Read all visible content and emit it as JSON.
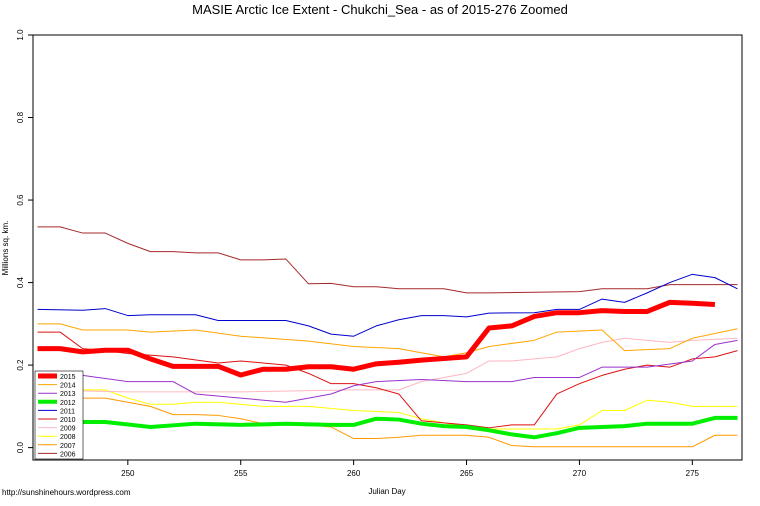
{
  "chart_data": {
    "type": "line",
    "title": "MASIE Arctic Ice Extent - Chukchi_Sea - as of 2015-276 Zoomed",
    "x_label": "Julian Day",
    "y_label": "Millions sq. km.",
    "footer": "http://sunshinehours.wordpress.com",
    "xlim": [
      245.8,
      277.2
    ],
    "ylim": [
      -0.03,
      1.0
    ],
    "xticks": [
      250,
      255,
      260,
      265,
      270,
      275
    ],
    "yticks": [
      {
        "value": 0,
        "label": "0.0"
      },
      0.2,
      0.4,
      0.6,
      0.8,
      {
        "value": 1,
        "label": "1.0"
      }
    ],
    "legend": "bottom-left",
    "series": [
      {
        "name": "2015",
        "color": "#ff0000",
        "lw": 5,
        "x": [
          246,
          247,
          248,
          249,
          250,
          251,
          252,
          253,
          254,
          255,
          256,
          257,
          258,
          259,
          260,
          261,
          262,
          263,
          264,
          265,
          266,
          267,
          268,
          269,
          270,
          271,
          272,
          273,
          274,
          275,
          276
        ],
        "values": [
          0.24,
          0.24,
          0.232,
          0.236,
          0.236,
          0.215,
          0.197,
          0.197,
          0.197,
          0.176,
          0.19,
          0.19,
          0.196,
          0.196,
          0.19,
          0.203,
          0.207,
          0.212,
          0.216,
          0.22,
          0.29,
          0.295,
          0.318,
          0.327,
          0.327,
          0.332,
          0.33,
          0.33,
          0.352,
          0.35,
          0.347
        ]
      },
      {
        "name": "2014",
        "color": "#ffa500",
        "lw": 1,
        "x": [
          246,
          247,
          248,
          250,
          251,
          253,
          255,
          258,
          260,
          262,
          264,
          265,
          266,
          268,
          269,
          271,
          272,
          274,
          275,
          277
        ],
        "values": [
          0.3,
          0.3,
          0.285,
          0.285,
          0.28,
          0.285,
          0.27,
          0.258,
          0.245,
          0.24,
          0.22,
          0.23,
          0.245,
          0.26,
          0.28,
          0.285,
          0.235,
          0.24,
          0.265,
          0.288
        ]
      },
      {
        "name": "2013",
        "color": "#9932cc",
        "lw": 1,
        "x": [
          246,
          248,
          250,
          252,
          253,
          255,
          257,
          258,
          259,
          260,
          261,
          263,
          265,
          267,
          268,
          270,
          271,
          273,
          275,
          276,
          277
        ],
        "values": [
          0.18,
          0.175,
          0.16,
          0.16,
          0.13,
          0.12,
          0.11,
          0.12,
          0.13,
          0.15,
          0.16,
          0.165,
          0.16,
          0.16,
          0.17,
          0.17,
          0.195,
          0.195,
          0.21,
          0.25,
          0.26
        ]
      },
      {
        "name": "2012",
        "color": "#00ee00",
        "lw": 4,
        "x": [
          246,
          247,
          249,
          251,
          253,
          255,
          257,
          259,
          260,
          261,
          262,
          263,
          264,
          265,
          266,
          267,
          268,
          269,
          270,
          272,
          273,
          275,
          276,
          277
        ],
        "values": [
          0.07,
          0.062,
          0.062,
          0.05,
          0.058,
          0.055,
          0.058,
          0.055,
          0.055,
          0.07,
          0.068,
          0.058,
          0.052,
          0.05,
          0.042,
          0.032,
          0.025,
          0.035,
          0.048,
          0.052,
          0.058,
          0.058,
          0.072,
          0.072
        ]
      },
      {
        "name": "2011",
        "color": "#0000cc",
        "lw": 1,
        "x": [
          246,
          248,
          249,
          250,
          251,
          253,
          254,
          257,
          258,
          259,
          260,
          261,
          262,
          263,
          264,
          265,
          266,
          268,
          269,
          270,
          271,
          272,
          273,
          274,
          275,
          276,
          277
        ],
        "values": [
          0.335,
          0.333,
          0.337,
          0.32,
          0.322,
          0.322,
          0.308,
          0.308,
          0.295,
          0.275,
          0.27,
          0.295,
          0.31,
          0.32,
          0.32,
          0.317,
          0.326,
          0.327,
          0.335,
          0.335,
          0.36,
          0.352,
          0.375,
          0.4,
          0.42,
          0.412,
          0.385
        ]
      },
      {
        "name": "2010",
        "color": "#dd1111",
        "lw": 1,
        "x": [
          246,
          247,
          248,
          249,
          250,
          252,
          254,
          255,
          257,
          258,
          259,
          260,
          261,
          262,
          263,
          264,
          265,
          266,
          267,
          268,
          269,
          270,
          271,
          272,
          273,
          274,
          275,
          276,
          277
        ],
        "values": [
          0.28,
          0.28,
          0.24,
          0.235,
          0.228,
          0.22,
          0.205,
          0.21,
          0.2,
          0.18,
          0.155,
          0.155,
          0.145,
          0.13,
          0.065,
          0.06,
          0.055,
          0.048,
          0.055,
          0.055,
          0.13,
          0.155,
          0.175,
          0.19,
          0.2,
          0.195,
          0.215,
          0.22,
          0.235
        ]
      },
      {
        "name": "2009",
        "color": "#ffb6c1",
        "lw": 1,
        "x": [
          246,
          250,
          255,
          260,
          262,
          263,
          265,
          266,
          267,
          268,
          269,
          270,
          271,
          272,
          273,
          274,
          275,
          277
        ],
        "values": [
          0.14,
          0.135,
          0.135,
          0.14,
          0.14,
          0.16,
          0.18,
          0.21,
          0.21,
          0.215,
          0.22,
          0.24,
          0.255,
          0.265,
          0.26,
          0.255,
          0.26,
          0.265
        ]
      },
      {
        "name": "2008",
        "color": "#ffff00",
        "lw": 1,
        "x": [
          246,
          248,
          249,
          250,
          251,
          252,
          253,
          254,
          256,
          258,
          260,
          262,
          263,
          265,
          266,
          268,
          269,
          270,
          271,
          272,
          273,
          274,
          275,
          277
        ],
        "values": [
          0.15,
          0.14,
          0.14,
          0.12,
          0.105,
          0.105,
          0.11,
          0.11,
          0.1,
          0.1,
          0.09,
          0.085,
          0.07,
          0.05,
          0.045,
          0.045,
          0.045,
          0.055,
          0.09,
          0.09,
          0.115,
          0.11,
          0.1,
          0.1
        ]
      },
      {
        "name": "2007",
        "color": "#ff9900",
        "lw": 1,
        "x": [
          246,
          247,
          249,
          250,
          251,
          252,
          253,
          254,
          255,
          256,
          258,
          259,
          260,
          261,
          262,
          263,
          264,
          265,
          266,
          267,
          268,
          270,
          275,
          276,
          277
        ],
        "values": [
          0.13,
          0.12,
          0.12,
          0.11,
          0.1,
          0.08,
          0.08,
          0.078,
          0.07,
          0.058,
          0.055,
          0.05,
          0.022,
          0.022,
          0.025,
          0.03,
          0.03,
          0.03,
          0.025,
          0.005,
          0.002,
          0.002,
          0.002,
          0.03,
          0.03
        ]
      },
      {
        "name": "2006",
        "color": "#a52a2a",
        "lw": 1,
        "x": [
          246,
          247,
          248,
          249,
          250,
          251,
          252,
          253,
          254,
          255,
          256,
          257,
          258,
          259,
          260,
          261,
          262,
          263,
          264,
          265,
          266,
          270,
          271,
          273,
          274,
          277
        ],
        "values": [
          0.535,
          0.535,
          0.52,
          0.52,
          0.495,
          0.475,
          0.475,
          0.472,
          0.472,
          0.455,
          0.455,
          0.457,
          0.397,
          0.398,
          0.39,
          0.39,
          0.385,
          0.385,
          0.385,
          0.375,
          0.375,
          0.378,
          0.385,
          0.385,
          0.395,
          0.395
        ]
      }
    ]
  }
}
